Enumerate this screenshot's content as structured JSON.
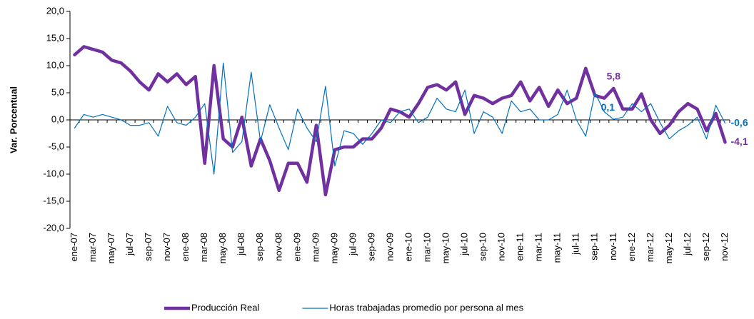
{
  "chart_data": {
    "type": "line",
    "y_label": "Var. Porcentual",
    "categories": [
      "ene-07",
      null,
      "mar-07",
      null,
      "may-07",
      null,
      "jul-07",
      null,
      "sep-07",
      null,
      "nov-07",
      null,
      "ene-08",
      null,
      "mar-08",
      null,
      "may-08",
      null,
      "jul-08",
      null,
      "sep-08",
      null,
      "nov-08",
      null,
      "ene-09",
      null,
      "mar-09",
      null,
      "may-09",
      null,
      "jul-09",
      null,
      "sep-09",
      null,
      "nov-09",
      null,
      "ene-10",
      null,
      "mar-10",
      null,
      "may-10",
      null,
      "jul-10",
      null,
      "sep-10",
      null,
      "nov-10",
      null,
      "ene-11",
      null,
      "mar-11",
      null,
      "may-11",
      null,
      "jul-11",
      null,
      "sep-11",
      null,
      "nov-11",
      null,
      "ene-12",
      null,
      "mar-12",
      null,
      "may-12",
      null,
      "jul-12",
      null,
      "sep-12",
      null,
      "nov-12"
    ],
    "series": [
      {
        "name": "Producción Real",
        "color": "#7030a0",
        "width": 4.5,
        "values": [
          12,
          13.5,
          13,
          12.5,
          11,
          10.5,
          9,
          7,
          5.5,
          8.5,
          7,
          8.5,
          6.5,
          8,
          -8,
          10,
          -3.5,
          -5,
          0.5,
          -8.5,
          -3.5,
          -7.5,
          -13,
          -8,
          -8,
          -11.5,
          -1,
          -13.8,
          -5.5,
          -5,
          -5,
          -3.5,
          -3.5,
          -1.5,
          2,
          1.5,
          0.5,
          3,
          6,
          6.5,
          5.5,
          7,
          1,
          4.5,
          4,
          3,
          4,
          4.5,
          7,
          3.5,
          6,
          2.5,
          5.5,
          3,
          4,
          9.5,
          4.5,
          4,
          5.8,
          2,
          2,
          4.8,
          0,
          -2.5,
          -1,
          1.5,
          3,
          2,
          -2,
          1.2,
          -4.1
        ],
        "value_labels": [
          null,
          null,
          null,
          null,
          null,
          null,
          null,
          null,
          null,
          null,
          null,
          null,
          null,
          null,
          null,
          null,
          null,
          null,
          null,
          null,
          null,
          null,
          null,
          null,
          null,
          null,
          null,
          null,
          null,
          null,
          null,
          null,
          null,
          null,
          null,
          null,
          null,
          null,
          null,
          null,
          null,
          null,
          null,
          null,
          null,
          null,
          null,
          null,
          null,
          null,
          null,
          null,
          null,
          null,
          null,
          null,
          null,
          null,
          "5,8",
          null,
          null,
          null,
          null,
          null,
          null,
          null,
          null,
          null,
          null,
          null,
          "-4,1"
        ]
      },
      {
        "name": "Horas trabajadas promedio por persona al mes",
        "color": "#0070c0",
        "width": 1.2,
        "values": [
          -1.5,
          1,
          0.5,
          1,
          0.5,
          0,
          -1,
          -1,
          -0.5,
          -3,
          2.5,
          -0.5,
          -1,
          0.5,
          3,
          -10,
          10.5,
          -6,
          -4,
          8.8,
          -4,
          2.8,
          -1.5,
          -5.5,
          2,
          -1.5,
          -4,
          6.2,
          -8.5,
          -2,
          -2.5,
          -4.5,
          -2.5,
          0,
          -0.5,
          1.5,
          2,
          -0.5,
          0.5,
          4,
          2,
          1.5,
          5.5,
          -2.5,
          1.5,
          0.5,
          -2.5,
          3.5,
          1.5,
          2,
          0,
          0,
          1,
          5.5,
          0,
          -3,
          5,
          1.5,
          0.1,
          0.5,
          3,
          1.5,
          3,
          -0.5,
          -3.5,
          -2,
          -1,
          0.5,
          -3.5,
          2.7,
          -0.6
        ],
        "value_labels": [
          null,
          null,
          null,
          null,
          null,
          null,
          null,
          null,
          null,
          null,
          null,
          null,
          null,
          null,
          null,
          null,
          null,
          null,
          null,
          null,
          null,
          null,
          null,
          null,
          null,
          null,
          null,
          null,
          null,
          null,
          null,
          null,
          null,
          null,
          null,
          null,
          null,
          null,
          null,
          null,
          null,
          null,
          null,
          null,
          null,
          null,
          null,
          null,
          null,
          null,
          null,
          null,
          null,
          null,
          null,
          null,
          null,
          null,
          "0,1",
          null,
          null,
          null,
          null,
          null,
          null,
          null,
          null,
          null,
          null,
          null,
          "-0,6"
        ]
      }
    ],
    "ylim": [
      -20,
      20
    ],
    "yticks": [
      {
        "value": -20,
        "label": "-20,0"
      },
      {
        "value": -15,
        "label": "-15,0"
      },
      {
        "value": -10,
        "label": "-10,0"
      },
      {
        "value": -5,
        "label": "-5,0"
      },
      {
        "value": 0,
        "label": "0,0"
      },
      {
        "value": 5,
        "label": "5,0"
      },
      {
        "value": 10,
        "label": "10,0"
      },
      {
        "value": 15,
        "label": "15,0"
      },
      {
        "value": 20,
        "label": "20,0"
      }
    ],
    "legend": "bottom"
  }
}
